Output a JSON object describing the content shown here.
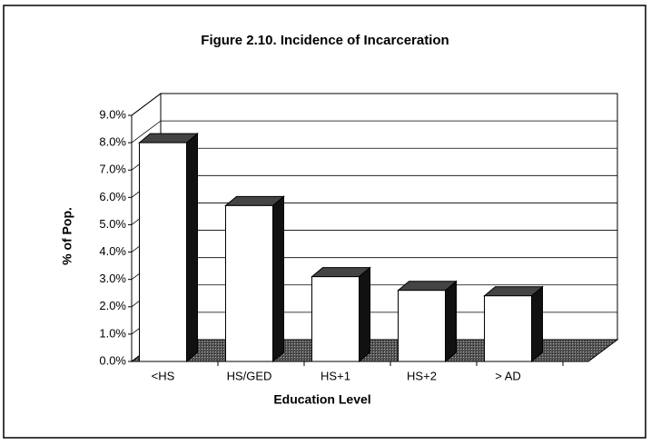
{
  "chart_data": {
    "type": "bar3d",
    "title": "Figure 2.10. Incidence of Incarceration",
    "x_label": "Education Level",
    "y_label": "% of Pop.",
    "categories": [
      "<HS",
      "HS/GED",
      "HS+1",
      "HS+2",
      "> AD"
    ],
    "values": [
      8.0,
      5.7,
      3.1,
      2.6,
      2.4
    ],
    "color": "#ffffff",
    "ylim": [
      0,
      9
    ],
    "yticks": [
      {
        "value": 0,
        "label": "0.0%"
      },
      {
        "value": 1,
        "label": "1.0%"
      },
      {
        "value": 2,
        "label": "2.0%"
      },
      {
        "value": 3,
        "label": "3.0%"
      },
      {
        "value": 4,
        "label": "4.0%"
      },
      {
        "value": 5,
        "label": "5.0%"
      },
      {
        "value": 6,
        "label": "6.0%"
      },
      {
        "value": 7,
        "label": "7.0%"
      },
      {
        "value": 8,
        "label": "8.0%"
      },
      {
        "value": 9,
        "label": "9.0%"
      }
    ],
    "grid": true
  }
}
